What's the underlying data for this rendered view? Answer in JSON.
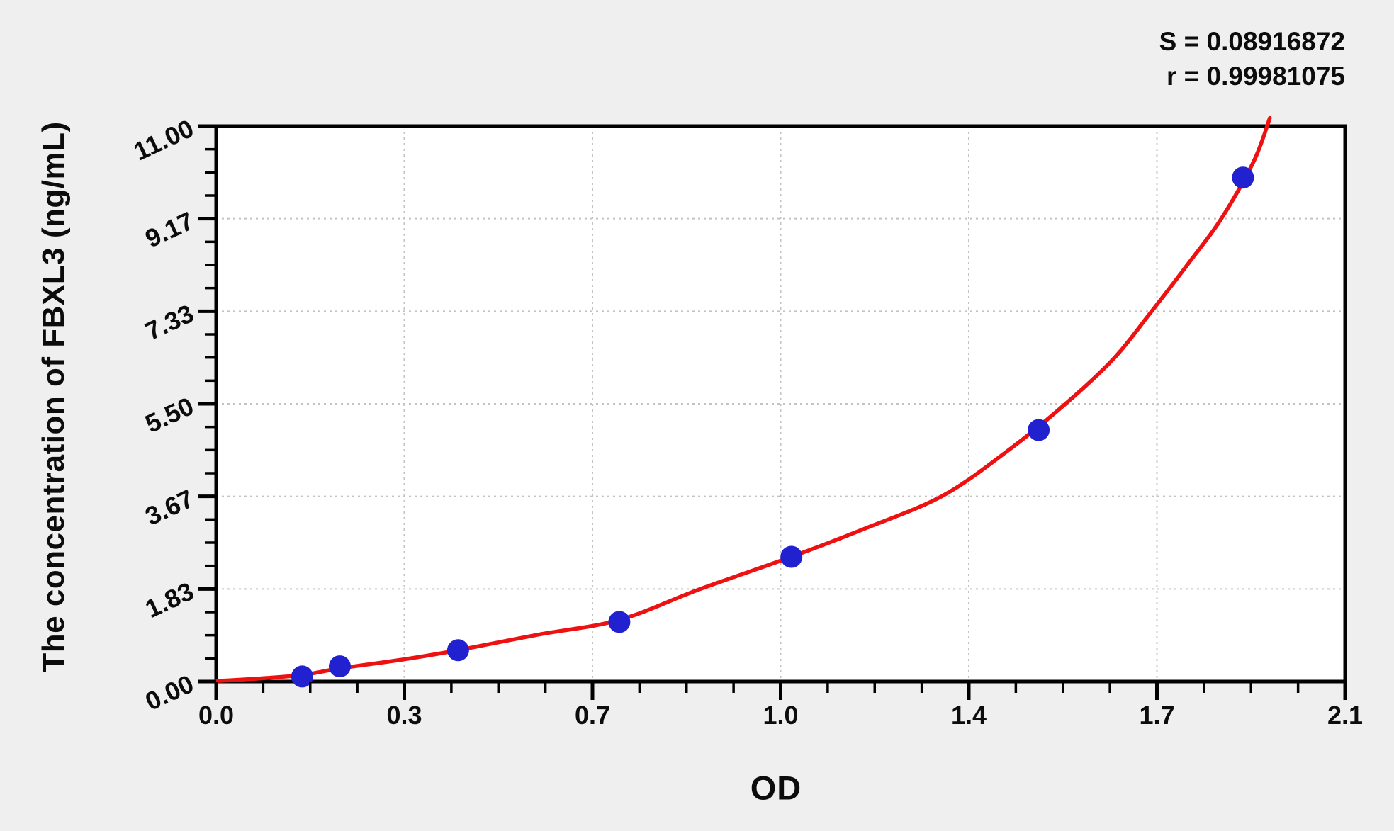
{
  "chart_data": {
    "type": "scatter",
    "title": "",
    "xlabel": "OD",
    "ylabel": "The concentration of FBXL3 (ng/mL)",
    "xlim": [
      0,
      2.1
    ],
    "ylim": [
      0,
      11
    ],
    "x_tick_labels": [
      "0.0",
      "0.3",
      "0.7",
      "1.0",
      "1.4",
      "1.7",
      "2.1"
    ],
    "y_tick_labels": [
      "0.00",
      "1.83",
      "3.67",
      "5.50",
      "7.33",
      "9.17",
      "11.00"
    ],
    "minor_divisions_per_major": 4,
    "grid": "major-dashed",
    "legend": "none",
    "series": [
      {
        "name": "standard-points",
        "type": "scatter",
        "marker": "circle",
        "points_xy": [
          [
            0.16,
            0.1
          ],
          [
            0.23,
            0.3
          ],
          [
            0.45,
            0.62
          ],
          [
            0.75,
            1.18
          ],
          [
            1.07,
            2.47
          ],
          [
            1.53,
            4.98
          ],
          [
            1.91,
            9.98
          ]
        ]
      },
      {
        "name": "fitted-curve",
        "type": "line",
        "points_xy": [
          [
            0.0,
            0.01
          ],
          [
            0.08,
            0.06
          ],
          [
            0.16,
            0.13
          ],
          [
            0.23,
            0.26
          ],
          [
            0.35,
            0.44
          ],
          [
            0.45,
            0.62
          ],
          [
            0.6,
            0.93
          ],
          [
            0.75,
            1.22
          ],
          [
            0.9,
            1.83
          ],
          [
            1.07,
            2.47
          ],
          [
            1.2,
            3.0
          ],
          [
            1.35,
            3.67
          ],
          [
            1.47,
            4.55
          ],
          [
            1.58,
            5.5
          ],
          [
            1.67,
            6.4
          ],
          [
            1.74,
            7.33
          ],
          [
            1.81,
            8.3
          ],
          [
            1.87,
            9.17
          ],
          [
            1.93,
            10.3
          ],
          [
            1.96,
            11.16
          ]
        ]
      }
    ],
    "annotations": {
      "s_stat": "S = 0.08916872",
      "r_stat": "r = 0.99981075"
    }
  },
  "colors": {
    "curve": "#ee1111",
    "points": "#2121d0",
    "axis": "#000000",
    "grid": "#c3c3c3",
    "plot_background": "#ffffff",
    "page_background": "#efefef",
    "text": "#0c0c0c"
  }
}
